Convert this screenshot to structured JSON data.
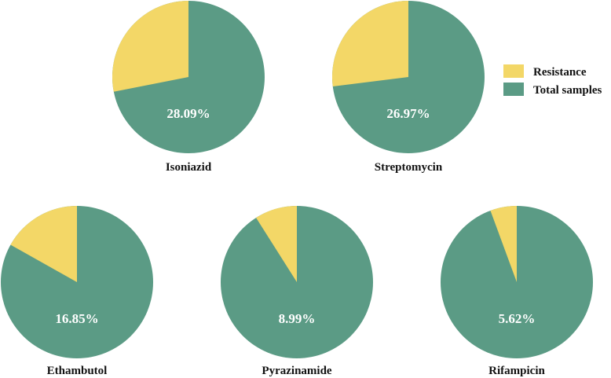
{
  "colors": {
    "resistance": "#F3D767",
    "total": "#5B9B85"
  },
  "legend": [
    {
      "key": "resistance",
      "label": "Resistance"
    },
    {
      "key": "total",
      "label": "Total samples"
    }
  ],
  "chart_data": {
    "type": "pie",
    "series_labels": [
      "Resistance",
      "Total samples"
    ],
    "pies": [
      {
        "label": "Isoniazid",
        "resistance_pct": 28.09,
        "pct_text": "28.09%"
      },
      {
        "label": "Streptomycin",
        "resistance_pct": 26.97,
        "pct_text": "26.97%"
      },
      {
        "label": "Ethambutol",
        "resistance_pct": 16.85,
        "pct_text": "16.85%"
      },
      {
        "label": "Pyrazinamide",
        "resistance_pct": 8.99,
        "pct_text": "8.99%"
      },
      {
        "label": "Rifampicin",
        "resistance_pct": 5.62,
        "pct_text": "5.62%"
      }
    ],
    "legend_position": "top-right"
  }
}
